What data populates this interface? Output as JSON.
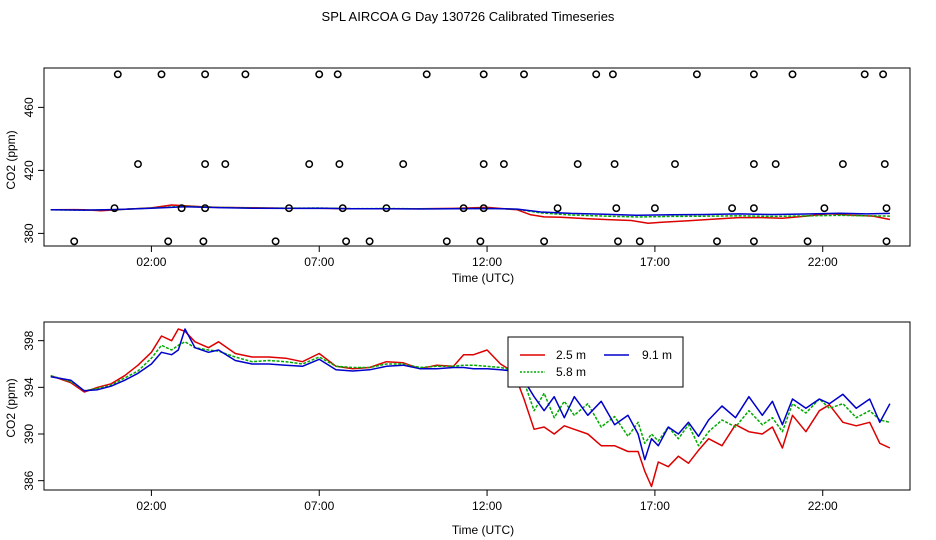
{
  "title": "SPL AIRCOA G  Day 130726  Calibrated Timeseries",
  "chart_data": [
    {
      "type": "scatter",
      "xlabel": "Time (UTC)",
      "ylabel": "CO2 (ppm)",
      "xlim": [
        -1.2,
        24.6
      ],
      "ylim": [
        372,
        485
      ],
      "xticks": [
        2,
        7,
        12,
        17,
        22
      ],
      "xticklabels": [
        "02:00",
        "07:00",
        "12:00",
        "17:00",
        "22:00"
      ],
      "yticks": [
        380,
        420,
        460
      ],
      "yticklabels": [
        "380",
        "420",
        "460"
      ],
      "grid": false,
      "points": {
        "x": [
          1.0,
          2.3,
          3.6,
          4.8,
          7.0,
          7.55,
          10.2,
          11.9,
          13.1,
          15.25,
          15.75,
          18.25,
          19.95,
          21.1,
          23.25,
          23.8,
          1.6,
          3.6,
          4.2,
          6.7,
          7.6,
          9.5,
          11.9,
          12.5,
          14.7,
          15.8,
          17.6,
          19.95,
          20.6,
          22.6,
          23.85,
          0.9,
          2.9,
          3.6,
          6.1,
          7.7,
          9.0,
          11.3,
          11.9,
          14.1,
          15.85,
          17.0,
          19.3,
          19.95,
          22.05,
          23.9,
          -0.3,
          2.5,
          3.55,
          5.7,
          7.8,
          8.5,
          10.8,
          11.8,
          13.7,
          15.9,
          16.55,
          18.85,
          19.95,
          21.55,
          23.9
        ],
        "y": [
          481,
          481,
          481,
          481,
          481,
          481,
          481,
          481,
          481,
          481,
          481,
          481,
          481,
          481,
          481,
          481,
          424,
          424,
          424,
          424,
          424,
          424,
          424,
          424,
          424,
          424,
          424,
          424,
          424,
          424,
          424,
          396,
          396,
          396,
          396,
          396,
          396,
          396,
          396,
          396,
          396,
          396,
          396,
          396,
          396,
          396,
          375,
          375,
          375,
          375,
          375,
          375,
          375,
          375,
          375,
          375,
          375,
          375,
          375,
          375,
          375
        ]
      },
      "series": [
        {
          "color": "#dd0000",
          "x": [
            -1.0,
            -0.3,
            0.0,
            0.5,
            1.0,
            1.5,
            2.0,
            2.6,
            3.0,
            3.5,
            4.0,
            5.0,
            6.0,
            7.0,
            8.0,
            9.0,
            10.0,
            11.0,
            12.0,
            12.9,
            13.3,
            13.7,
            14.2,
            15.0,
            15.7,
            16.3,
            16.8,
            17.2,
            18.0,
            18.7,
            19.5,
            20.2,
            20.8,
            21.5,
            22.2,
            22.9,
            23.5,
            24.0
          ],
          "y": [
            395,
            395.1,
            395,
            394.4,
            395.1,
            395.6,
            396.2,
            398.0,
            397.6,
            396.9,
            396.5,
            396.3,
            396.0,
            396.0,
            395.6,
            395.6,
            395.6,
            395.9,
            396.5,
            395.0,
            391.8,
            390.5,
            390.3,
            389.3,
            388.7,
            388.2,
            386.5,
            387.1,
            388.0,
            389.0,
            390.0,
            390.0,
            389.6,
            391.0,
            392.5,
            391.5,
            391.0,
            388.8
          ]
        },
        {
          "color": "#00aa00",
          "x": [
            -1.0,
            0.0,
            1.0,
            2.0,
            3.0,
            4.0,
            5.0,
            6.0,
            7.0,
            8.0,
            9.0,
            10.0,
            11.0,
            12.0,
            12.9,
            13.6,
            14.5,
            15.5,
            16.5,
            17.5,
            18.5,
            19.5,
            20.5,
            21.5,
            22.5,
            23.3,
            24.0
          ],
          "y": [
            395,
            394.7,
            395.1,
            396.1,
            397.2,
            396.5,
            396.1,
            396.0,
            396.1,
            395.7,
            395.8,
            395.6,
            395.7,
            395.9,
            395.3,
            393.0,
            391.7,
            391.0,
            390.4,
            390.8,
            390.9,
            391.2,
            390.8,
            391.1,
            391.5,
            391.2,
            391.0
          ]
        },
        {
          "color": "#0000cc",
          "x": [
            -1.0,
            0.0,
            1.0,
            2.0,
            3.0,
            4.0,
            5.0,
            6.0,
            7.0,
            8.0,
            9.0,
            10.0,
            11.0,
            12.0,
            12.9,
            13.6,
            14.5,
            15.5,
            16.5,
            17.5,
            18.5,
            19.5,
            20.5,
            21.5,
            22.5,
            23.3,
            24.0
          ],
          "y": [
            395,
            394.8,
            395.2,
            396.0,
            396.9,
            396.4,
            396.0,
            395.9,
            396.0,
            395.6,
            395.7,
            395.5,
            395.6,
            395.8,
            395.4,
            393.6,
            392.7,
            392.2,
            391.5,
            391.9,
            392.0,
            392.4,
            392.0,
            392.3,
            392.8,
            392.4,
            392.7
          ]
        }
      ]
    },
    {
      "type": "line",
      "xlabel": "Time (UTC)",
      "ylabel": "CO2 (ppm)",
      "xlim": [
        -1.2,
        24.6
      ],
      "ylim": [
        385.2,
        399.6
      ],
      "xticks": [
        2,
        7,
        12,
        17,
        22
      ],
      "xticklabels": [
        "02:00",
        "07:00",
        "12:00",
        "17:00",
        "22:00"
      ],
      "yticks": [
        386,
        390,
        394,
        398
      ],
      "yticklabels": [
        "386",
        "390",
        "394",
        "398"
      ],
      "grid": false,
      "legend": {
        "placement": "top-center",
        "entries": [
          "2.5 m",
          "5.8 m",
          "9.1 m"
        ]
      },
      "series": [
        {
          "name": "2.5 m",
          "color": "#dd0000",
          "x": [
            -1.0,
            -0.4,
            0.0,
            0.4,
            0.8,
            1.2,
            1.6,
            2.0,
            2.3,
            2.6,
            2.8,
            3.0,
            3.3,
            3.7,
            4.0,
            4.5,
            5.0,
            5.5,
            6.0,
            6.5,
            7.0,
            7.5,
            8.0,
            8.5,
            9.0,
            9.5,
            10.0,
            10.5,
            11.0,
            11.3,
            11.6,
            12.0,
            12.4,
            12.8,
            13.1,
            13.4,
            13.7,
            14.0,
            14.3,
            14.6,
            15.0,
            15.4,
            15.8,
            16.2,
            16.5,
            16.7,
            16.9,
            17.1,
            17.4,
            17.7,
            18.0,
            18.3,
            18.6,
            19.0,
            19.4,
            19.8,
            20.2,
            20.5,
            20.8,
            21.1,
            21.5,
            21.9,
            22.2,
            22.6,
            23.0,
            23.4,
            23.7,
            24.0
          ],
          "y": [
            395.0,
            394.4,
            393.6,
            394.0,
            394.3,
            395.0,
            395.9,
            397.0,
            398.4,
            398.0,
            399.0,
            398.8,
            397.9,
            397.4,
            397.9,
            396.9,
            396.6,
            396.6,
            396.5,
            396.2,
            396.9,
            395.8,
            395.6,
            395.7,
            396.2,
            396.1,
            395.6,
            395.9,
            395.8,
            396.8,
            396.8,
            397.2,
            396.0,
            395.3,
            393.0,
            390.4,
            390.6,
            390.0,
            390.7,
            390.4,
            390.0,
            389.0,
            389.0,
            388.5,
            388.5,
            386.8,
            385.5,
            387.6,
            387.2,
            388.1,
            387.5,
            388.6,
            389.6,
            389.0,
            390.8,
            390.2,
            390.0,
            390.6,
            388.8,
            391.6,
            390.2,
            392.0,
            392.5,
            391.0,
            390.7,
            391.0,
            389.2,
            388.8
          ]
        },
        {
          "name": "5.8 m",
          "color": "#00aa00",
          "x": [
            -1.0,
            -0.4,
            0.0,
            0.4,
            0.8,
            1.2,
            1.6,
            2.0,
            2.3,
            2.6,
            2.8,
            3.0,
            3.3,
            3.7,
            4.0,
            4.5,
            5.0,
            5.5,
            6.0,
            6.5,
            7.0,
            7.5,
            8.0,
            8.5,
            9.0,
            9.5,
            10.0,
            10.5,
            11.0,
            11.3,
            11.6,
            12.0,
            12.4,
            12.8,
            13.1,
            13.4,
            13.7,
            14.0,
            14.3,
            14.6,
            15.0,
            15.4,
            15.8,
            16.2,
            16.5,
            16.7,
            16.9,
            17.1,
            17.4,
            17.7,
            18.0,
            18.3,
            18.6,
            19.0,
            19.4,
            19.8,
            20.2,
            20.5,
            20.8,
            21.1,
            21.5,
            21.9,
            22.2,
            22.6,
            23.0,
            23.4,
            23.7,
            24.0
          ],
          "y": [
            395.0,
            394.5,
            393.7,
            393.9,
            394.2,
            394.8,
            395.4,
            396.5,
            397.6,
            397.2,
            397.6,
            397.9,
            397.4,
            397.2,
            397.1,
            396.6,
            396.2,
            396.3,
            396.2,
            396.0,
            396.6,
            395.8,
            395.7,
            395.7,
            396.0,
            396.0,
            395.7,
            395.8,
            395.8,
            395.9,
            395.9,
            395.8,
            395.7,
            395.5,
            394.5,
            392.0,
            393.5,
            391.4,
            392.8,
            391.6,
            392.6,
            390.6,
            391.5,
            389.8,
            391.0,
            389.2,
            390.0,
            389.4,
            390.6,
            389.6,
            390.8,
            389.0,
            390.2,
            391.2,
            390.6,
            392.0,
            390.8,
            391.4,
            390.2,
            392.6,
            391.8,
            393.0,
            392.2,
            392.6,
            391.4,
            392.0,
            391.2,
            391.0
          ]
        },
        {
          "name": "9.1 m",
          "color": "#0000cc",
          "x": [
            -1.0,
            -0.4,
            0.0,
            0.4,
            0.8,
            1.2,
            1.6,
            2.0,
            2.3,
            2.6,
            2.8,
            3.0,
            3.3,
            3.7,
            4.0,
            4.5,
            5.0,
            5.5,
            6.0,
            6.5,
            7.0,
            7.5,
            8.0,
            8.5,
            9.0,
            9.5,
            10.0,
            10.5,
            11.0,
            11.3,
            11.6,
            12.0,
            12.4,
            12.8,
            13.1,
            13.4,
            13.7,
            14.0,
            14.3,
            14.6,
            15.0,
            15.4,
            15.8,
            16.2,
            16.5,
            16.7,
            16.9,
            17.1,
            17.4,
            17.7,
            18.0,
            18.3,
            18.6,
            19.0,
            19.4,
            19.8,
            20.2,
            20.5,
            20.8,
            21.1,
            21.5,
            21.9,
            22.2,
            22.6,
            23.0,
            23.4,
            23.7,
            24.0
          ],
          "y": [
            394.9,
            394.6,
            393.7,
            393.8,
            394.1,
            394.6,
            395.2,
            396.0,
            397.0,
            396.8,
            397.2,
            399.0,
            397.4,
            397.0,
            397.2,
            396.3,
            396.0,
            396.0,
            395.9,
            395.8,
            396.4,
            395.5,
            395.4,
            395.5,
            395.8,
            395.9,
            395.6,
            395.6,
            395.7,
            395.7,
            395.6,
            395.6,
            395.5,
            395.4,
            394.6,
            393.2,
            392.0,
            393.2,
            391.4,
            393.2,
            391.6,
            392.8,
            390.8,
            391.6,
            390.0,
            387.8,
            389.6,
            389.0,
            390.6,
            390.0,
            391.0,
            389.8,
            391.2,
            392.4,
            391.4,
            393.2,
            391.6,
            392.8,
            390.8,
            393.0,
            392.2,
            393.0,
            392.6,
            393.4,
            392.2,
            393.0,
            391.0,
            392.6
          ]
        }
      ]
    }
  ]
}
